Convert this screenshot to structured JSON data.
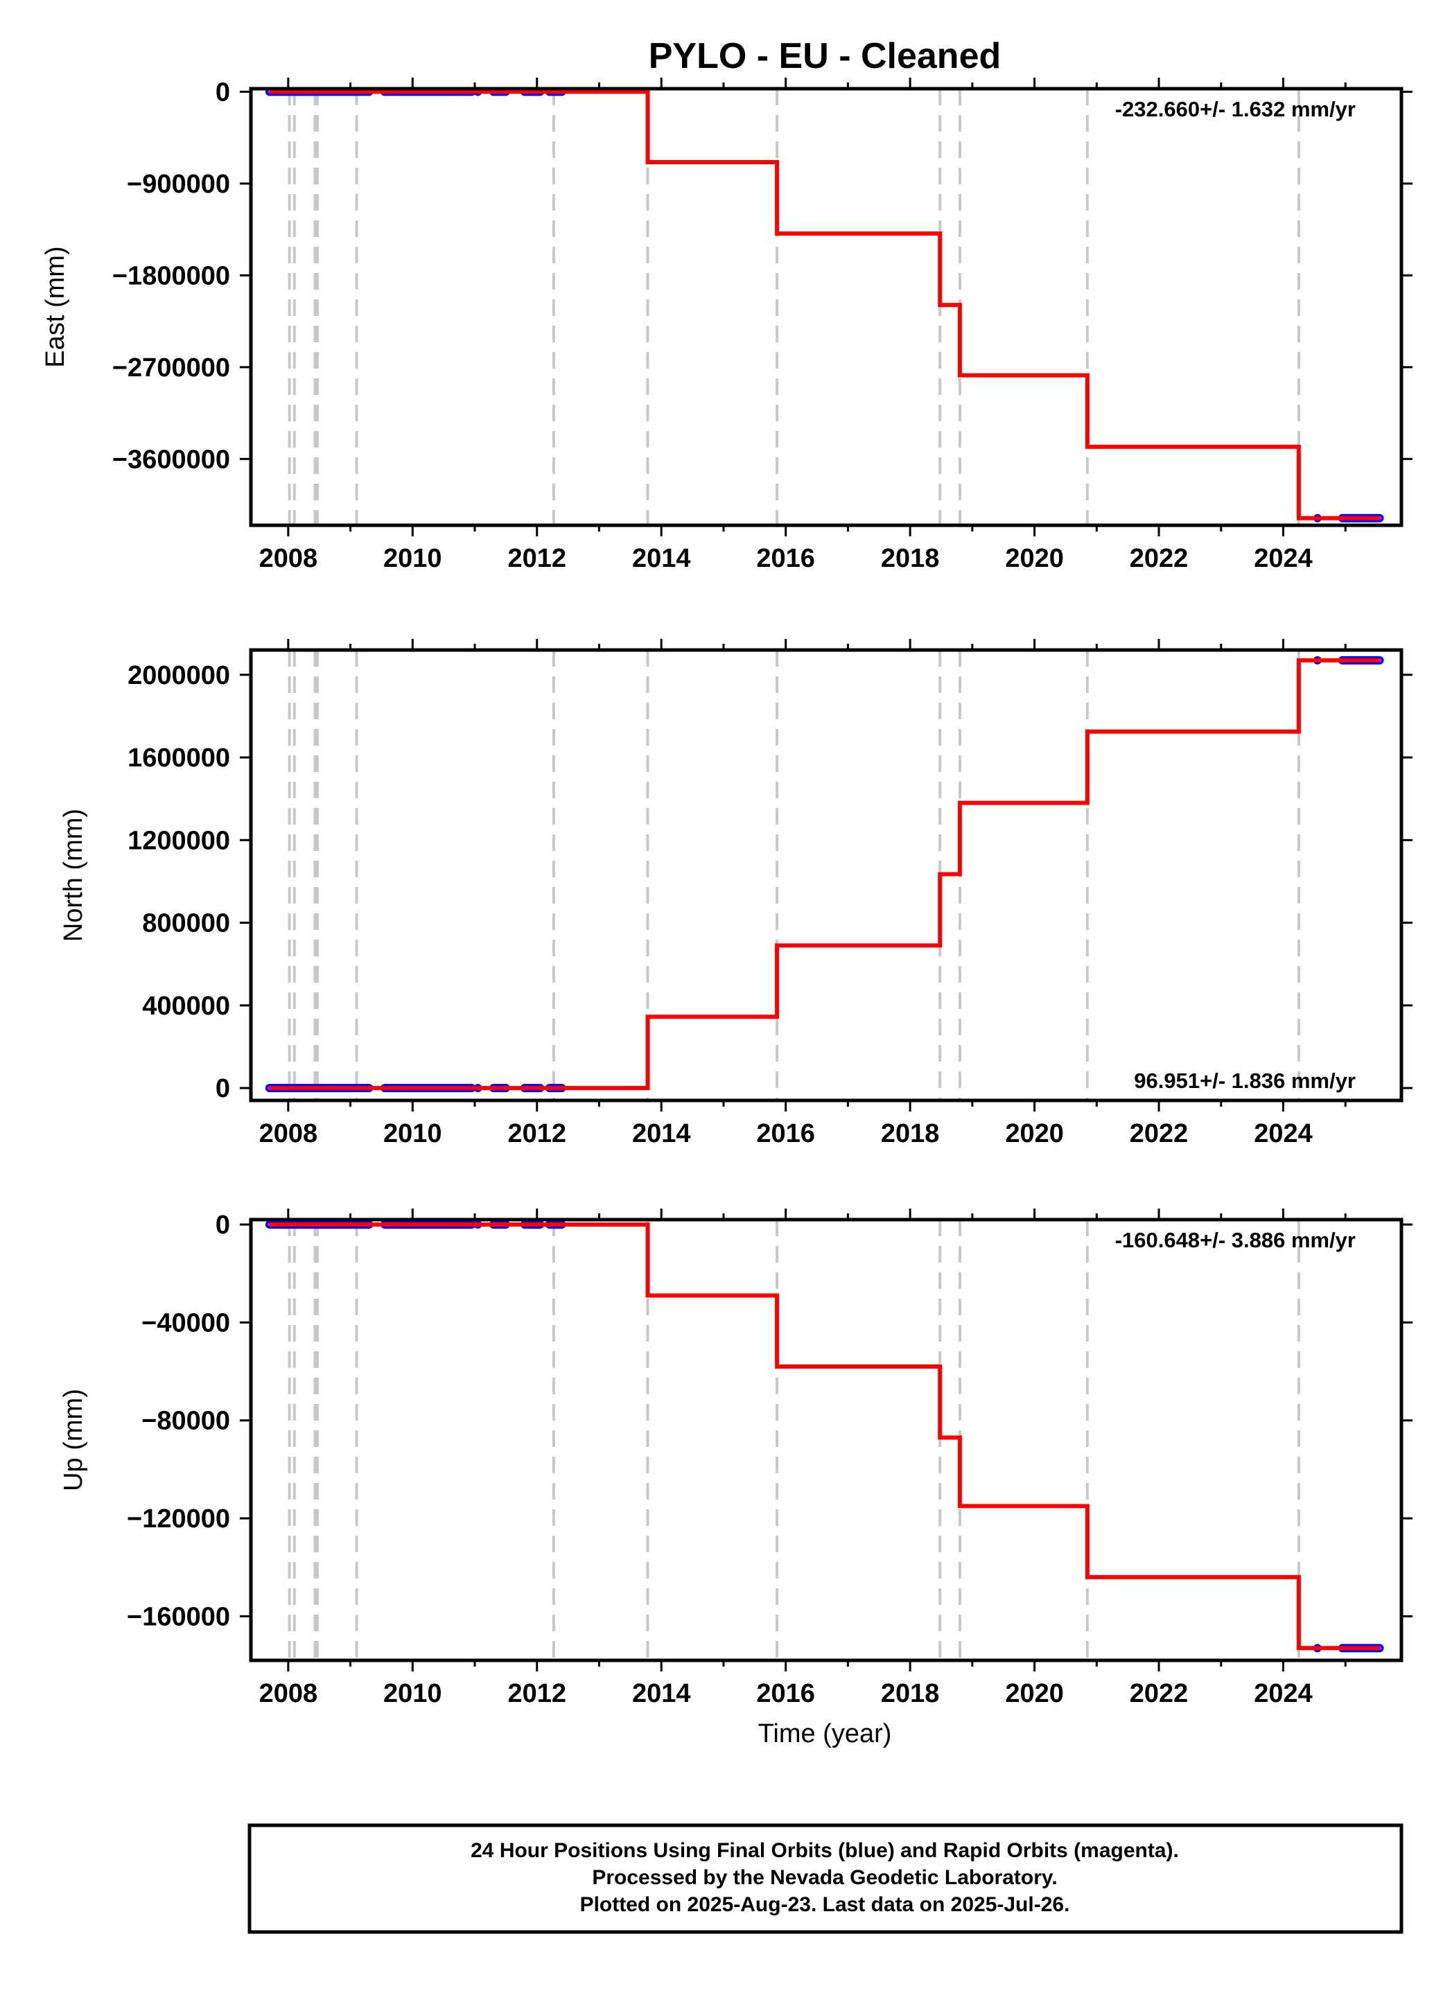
{
  "title": "PYLO  - EU - Cleaned",
  "xlabel": "Time (year)",
  "footer": {
    "line1": "24 Hour Positions Using Final Orbits (blue) and Rapid Orbits (magenta).",
    "line2": "Processed by the Nevada Geodetic Laboratory.",
    "line3": "Plotted on 2025-Aug-23. Last data on 2025-Jul-26."
  },
  "colors": {
    "model_line": "#ff0000",
    "final_orbit_points": "#0000ff",
    "rapid_orbit_points": "#ff00ff",
    "event_lines": "#c8c8c8"
  },
  "chart_data": [
    {
      "type": "line",
      "ylabel": "East (mm)",
      "rate_text": "-232.660+/- 1.632 mm/yr",
      "rate_position": "top-right",
      "xlim": [
        2007.4,
        2025.9
      ],
      "ylim": [
        -4250000,
        30000
      ],
      "xticks": [
        2008,
        2010,
        2012,
        2014,
        2016,
        2018,
        2020,
        2022,
        2024
      ],
      "yticks": [
        0,
        -900000,
        -1800000,
        -2700000,
        -3600000
      ],
      "ytick_labels": [
        "0",
        "−900000",
        "−1800000",
        "−2700000",
        "−3600000"
      ],
      "event_lines": [
        2008.02,
        2008.1,
        2008.43,
        2008.47,
        2009.1,
        2012.27,
        2013.78,
        2015.86,
        2018.48,
        2018.8,
        2020.85,
        2024.25
      ],
      "model_line": {
        "x": [
          2007.7,
          2013.78,
          2013.78,
          2015.86,
          2015.86,
          2018.48,
          2018.48,
          2018.8,
          2018.8,
          2020.85,
          2020.85,
          2024.25,
          2024.25,
          2025.55
        ],
        "y": [
          0,
          0,
          -690000,
          -690000,
          -1390000,
          -1390000,
          -2090000,
          -2090000,
          -2780000,
          -2780000,
          -3480000,
          -3480000,
          -4180000,
          -4180000
        ]
      },
      "data_segments": [
        {
          "x0": 2007.7,
          "x1": 2009.3,
          "y": 0
        },
        {
          "x0": 2009.55,
          "x1": 2010.95,
          "y": 0
        },
        {
          "x0": 2011.3,
          "x1": 2011.5,
          "y": 0
        },
        {
          "x0": 2011.8,
          "x1": 2012.05,
          "y": 0
        },
        {
          "x0": 2012.2,
          "x1": 2012.4,
          "y": 0
        },
        {
          "x0": 2024.95,
          "x1": 2025.55,
          "y": -4180000
        }
      ],
      "data_dots": [
        {
          "x": 2011.05,
          "y": 0
        },
        {
          "x": 2011.95,
          "y": 0
        },
        {
          "x": 2024.55,
          "y": -4180000
        }
      ]
    },
    {
      "type": "line",
      "ylabel": "North (mm)",
      "rate_text": "96.951+/- 1.836 mm/yr",
      "rate_position": "bottom-right",
      "xlim": [
        2007.4,
        2025.9
      ],
      "ylim": [
        -60000,
        2120000
      ],
      "xticks": [
        2008,
        2010,
        2012,
        2014,
        2016,
        2018,
        2020,
        2022,
        2024
      ],
      "yticks": [
        0,
        400000,
        800000,
        1200000,
        1600000,
        2000000
      ],
      "ytick_labels": [
        "0",
        "400000",
        "800000",
        "1200000",
        "1600000",
        "2000000"
      ],
      "event_lines": [
        2008.02,
        2008.1,
        2008.43,
        2008.47,
        2009.1,
        2012.27,
        2013.78,
        2015.86,
        2018.48,
        2018.8,
        2020.85,
        2024.25
      ],
      "model_line": {
        "x": [
          2007.7,
          2013.78,
          2013.78,
          2015.86,
          2015.86,
          2018.48,
          2018.48,
          2018.8,
          2018.8,
          2020.85,
          2020.85,
          2024.25,
          2024.25,
          2025.55
        ],
        "y": [
          0,
          0,
          345000,
          345000,
          690000,
          690000,
          1035000,
          1035000,
          1380000,
          1380000,
          1725000,
          1725000,
          2070000,
          2070000
        ]
      },
      "data_segments": [
        {
          "x0": 2007.7,
          "x1": 2009.3,
          "y": 0
        },
        {
          "x0": 2009.55,
          "x1": 2010.95,
          "y": 0
        },
        {
          "x0": 2011.3,
          "x1": 2011.5,
          "y": 0
        },
        {
          "x0": 2011.8,
          "x1": 2012.05,
          "y": 0
        },
        {
          "x0": 2012.2,
          "x1": 2012.4,
          "y": 0
        },
        {
          "x0": 2024.95,
          "x1": 2025.55,
          "y": 2070000
        }
      ],
      "data_dots": [
        {
          "x": 2011.05,
          "y": 0
        },
        {
          "x": 2011.95,
          "y": 0
        },
        {
          "x": 2024.55,
          "y": 2070000
        }
      ]
    },
    {
      "type": "line",
      "ylabel": "Up (mm)",
      "rate_text": "-160.648+/- 3.886 mm/yr",
      "rate_position": "top-right",
      "xlim": [
        2007.4,
        2025.9
      ],
      "ylim": [
        -178000,
        2000
      ],
      "xticks": [
        2008,
        2010,
        2012,
        2014,
        2016,
        2018,
        2020,
        2022,
        2024
      ],
      "yticks": [
        0,
        -40000,
        -80000,
        -120000,
        -160000
      ],
      "ytick_labels": [
        "0",
        "−40000",
        "−80000",
        "−120000",
        "−160000"
      ],
      "event_lines": [
        2008.02,
        2008.1,
        2008.43,
        2008.47,
        2009.1,
        2012.27,
        2013.78,
        2015.86,
        2018.48,
        2018.8,
        2020.85,
        2024.25
      ],
      "model_line": {
        "x": [
          2007.7,
          2013.78,
          2013.78,
          2015.86,
          2015.86,
          2018.48,
          2018.48,
          2018.8,
          2018.8,
          2020.85,
          2020.85,
          2024.25,
          2024.25,
          2025.55
        ],
        "y": [
          0,
          0,
          -29000,
          -29000,
          -58000,
          -58000,
          -87000,
          -87000,
          -115000,
          -115000,
          -144000,
          -144000,
          -173000,
          -173000
        ]
      },
      "data_segments": [
        {
          "x0": 2007.7,
          "x1": 2009.3,
          "y": 0
        },
        {
          "x0": 2009.55,
          "x1": 2010.95,
          "y": 0
        },
        {
          "x0": 2011.3,
          "x1": 2011.5,
          "y": 0
        },
        {
          "x0": 2011.8,
          "x1": 2012.05,
          "y": 0
        },
        {
          "x0": 2012.2,
          "x1": 2012.4,
          "y": 0
        },
        {
          "x0": 2024.95,
          "x1": 2025.55,
          "y": -173000
        }
      ],
      "data_dots": [
        {
          "x": 2011.05,
          "y": 0
        },
        {
          "x": 2011.95,
          "y": 0
        },
        {
          "x": 2024.55,
          "y": -173000
        }
      ]
    }
  ]
}
